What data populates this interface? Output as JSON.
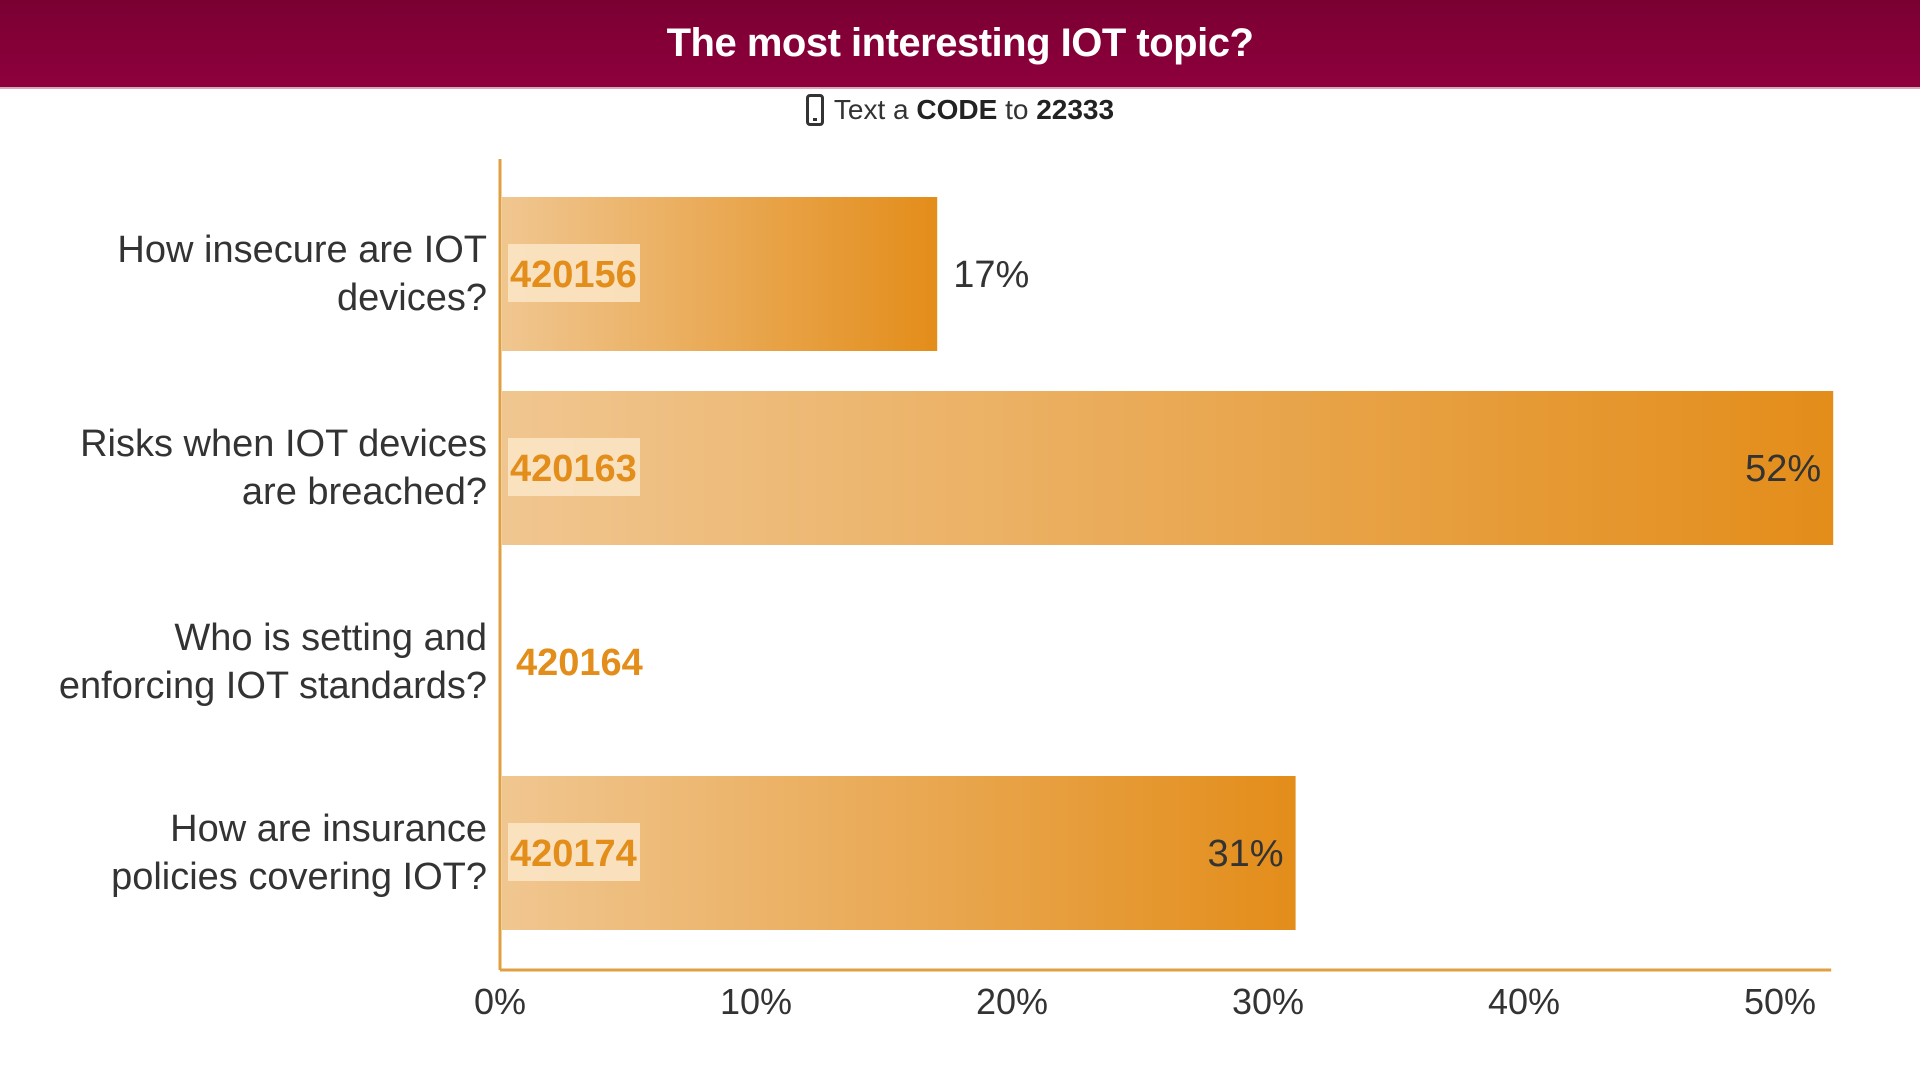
{
  "header": {
    "title": "The most interesting IOT topic?"
  },
  "instructions": {
    "icon": "phone-icon",
    "text_prefix": "Text a",
    "code_word": "CODE",
    "to_word": "to",
    "number": "22333"
  },
  "colors": {
    "header": "#8a0038",
    "bar_light": "#f0c690",
    "bar_dark": "#e38d1a",
    "code_text": "#e38d1a",
    "axis": "#e0a040"
  },
  "chart_data": {
    "type": "bar",
    "orientation": "horizontal",
    "title": "The most interesting IOT topic?",
    "categories": [
      "How insecure are IOT devices?",
      "Risks when IOT devices are breached?",
      "Who is setting and enforcing IOT standards?",
      "How are insurance policies covering IOT?"
    ],
    "category_lines": [
      [
        "How insecure are IOT",
        "devices?"
      ],
      [
        "Risks when IOT devices",
        "are breached?"
      ],
      [
        "Who is setting and",
        "enforcing IOT standards?"
      ],
      [
        "How are insurance",
        "policies covering IOT?"
      ]
    ],
    "codes": [
      "420156",
      "420163",
      "420164",
      "420174"
    ],
    "values": [
      17,
      52,
      0,
      31
    ],
    "value_labels": [
      "17%",
      "52%",
      "",
      "31%"
    ],
    "xlim": [
      0,
      52
    ],
    "xticks": [
      "0%",
      "10%",
      "20%",
      "30%",
      "40%",
      "50%"
    ],
    "xtick_values": [
      0,
      10,
      20,
      30,
      40,
      50
    ],
    "grid": false
  }
}
